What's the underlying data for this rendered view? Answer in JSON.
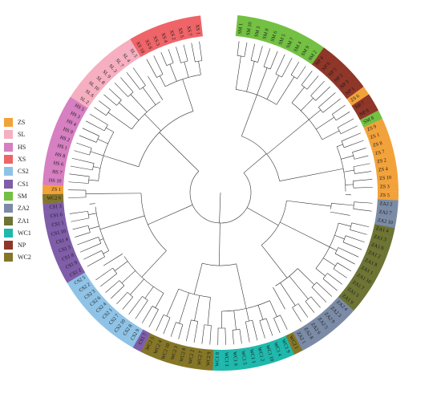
{
  "groups": [
    {
      "code": "ZS",
      "color": "#F2A23A"
    },
    {
      "code": "SL",
      "color": "#F6AFC0"
    },
    {
      "code": "HS",
      "color": "#D67FC1"
    },
    {
      "code": "XS",
      "color": "#EE6468"
    },
    {
      "code": "CS2",
      "color": "#8FC3E6"
    },
    {
      "code": "CS1",
      "color": "#7F5DA8"
    },
    {
      "code": "SM",
      "color": "#73C043"
    },
    {
      "code": "ZA2",
      "color": "#7B8BA6"
    },
    {
      "code": "ZA1",
      "color": "#6D7434"
    },
    {
      "code": "WC1",
      "color": "#1FB8AC"
    },
    {
      "code": "NP",
      "color": "#8F3628"
    },
    {
      "code": "WC2",
      "color": "#857627"
    }
  ],
  "leaves": [
    "SM 1",
    "SM 10",
    "SM 3",
    "SM 8",
    "SM 6",
    "SM 5",
    "SM 7",
    "SM 4",
    "SM 9",
    "SM 2",
    "NP 4",
    "NP 6",
    "NP 5",
    "NP 2",
    "NP 3",
    "NP 1",
    "ZS 6",
    "NP 7",
    "NP 8",
    "SM 8",
    "ZS 9",
    "ZS 1",
    "ZS 8",
    "ZS 7",
    "ZS 2",
    "ZS 4",
    "ZS 10",
    "ZS 3",
    "ZS 5",
    "ZA2 2",
    "ZA2 7",
    "ZA2 10",
    "ZA1 4",
    "ZA1 3",
    "ZA1 6",
    "ZA1 2",
    "ZA1 8",
    "ZA1 1",
    "ZA1 10",
    "ZA1 7",
    "ZA1 5",
    "ZA1 9",
    "ZA2 4",
    "ZA2 3",
    "ZA2 9",
    "ZA2 5",
    "ZA2 6",
    "ZA2 8",
    "ZA2 1",
    "WC2 1",
    "WC1 9",
    "WC1 4",
    "WC1 10",
    "WC1 2",
    "WC1 1",
    "WC1 5",
    "WC1 6",
    "WC1 3",
    "WC1 8",
    "WC2 9",
    "WC2 7",
    "WC2 2",
    "WC2 8",
    "WC2 3",
    "WC2 10",
    "WC2 4",
    "WC2 5",
    "CS1 7",
    "CS2 9",
    "CS2 8",
    "CS2 10",
    "CS2 7",
    "CS2 1",
    "CS2 4",
    "CS2 6",
    "CS2 3",
    "CS2 2",
    "CS2 5",
    "CS1 2",
    "CS1 9",
    "CS1 8",
    "CS1 5",
    "CS1 4",
    "CS1 10",
    "CS1 1",
    "CS1 6",
    "CS1 3",
    "WC2 6",
    "ZS 1",
    "HS 10",
    "HS 7",
    "HS 6",
    "HS 8",
    "HS 1",
    "HS 2",
    "HS 9",
    "HS 4",
    "HS 3",
    "HS 5",
    "SL 2",
    "SL 6",
    "SL 10",
    "SL 8",
    "SL 9",
    "SL 3",
    "SL 7",
    "SL 4",
    "SL 5",
    "XS 10",
    "XS 6",
    "XS 3",
    "XS 4",
    "XS 2",
    "XS 5",
    "XS 7",
    "XS 1"
  ]
}
